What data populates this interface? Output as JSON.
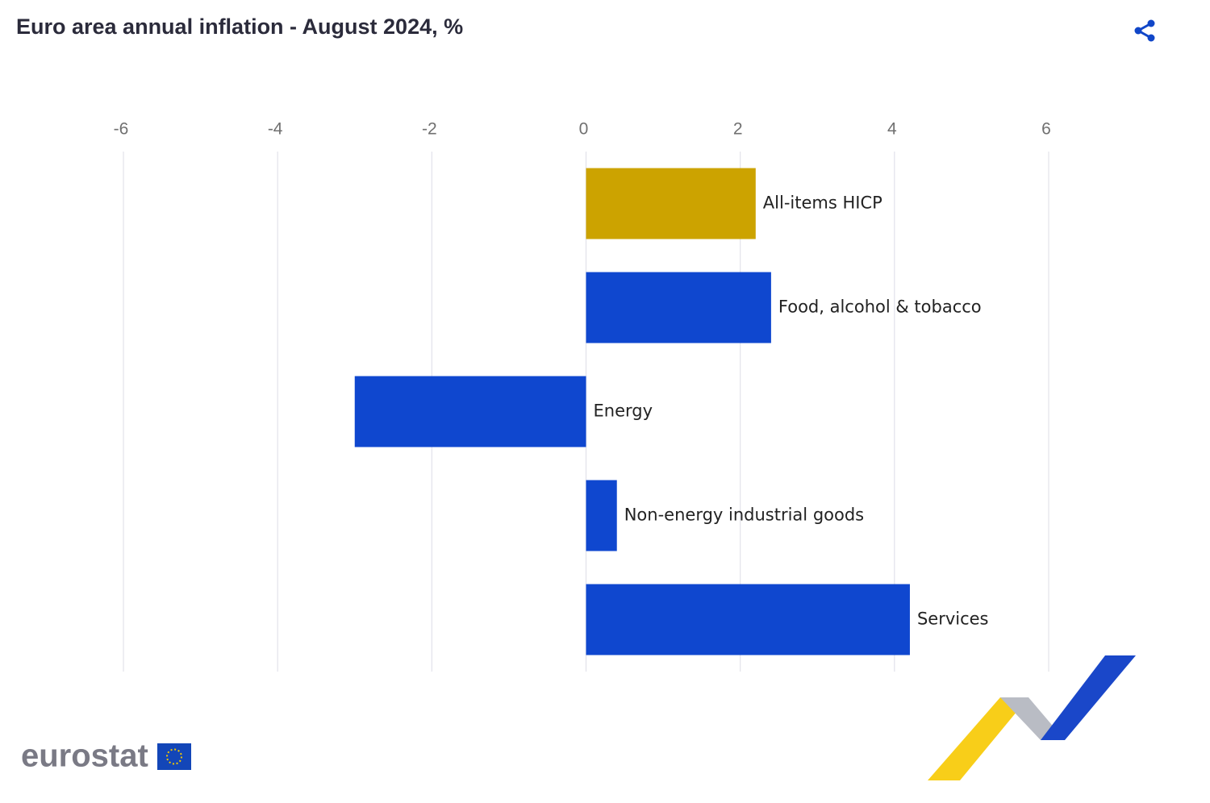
{
  "chart_data": {
    "type": "bar",
    "orientation": "horizontal",
    "title": "Euro area annual inflation - August 2024, %",
    "categories": [
      "All-items HICP",
      "Food, alcohol & tobacco",
      "Energy",
      "Non-energy industrial goods",
      "Services"
    ],
    "values": [
      2.2,
      2.4,
      -3.0,
      0.4,
      4.2
    ],
    "colors": [
      "#cca300",
      "#0f47cf",
      "#0f47cf",
      "#0f47cf",
      "#0f47cf"
    ],
    "xlim": [
      -6,
      6
    ],
    "xticks": [
      -6,
      -4,
      -2,
      0,
      2,
      4,
      6
    ],
    "grid": true,
    "logo": "eurostat"
  }
}
